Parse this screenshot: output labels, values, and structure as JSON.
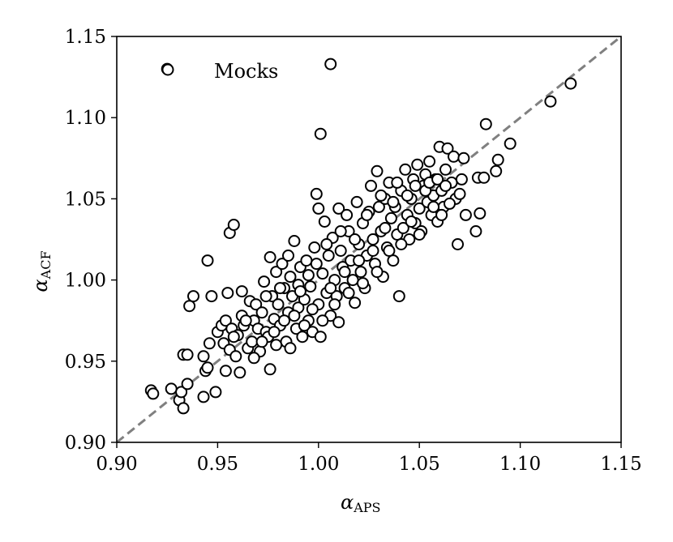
{
  "chart_data": {
    "type": "scatter",
    "xlabel": "α",
    "xlabel_sub": "APS",
    "ylabel": "α",
    "ylabel_sub": "ACF",
    "xlim": [
      0.9,
      1.15
    ],
    "ylim": [
      0.9,
      1.15
    ],
    "xticks": [
      "0.90",
      "0.95",
      "1.00",
      "1.05",
      "1.10",
      "1.15"
    ],
    "yticks": [
      "0.90",
      "0.95",
      "1.00",
      "1.05",
      "1.10",
      "1.15"
    ],
    "legend": {
      "label": "Mocks",
      "position": "top-left"
    },
    "reference_line": {
      "style": "dashed",
      "color": "#808080",
      "from": [
        0.9,
        0.9
      ],
      "to": [
        1.15,
        1.15
      ]
    },
    "marker": {
      "shape": "circle",
      "fill": "#ffffff",
      "edge": "#000000"
    },
    "series": [
      {
        "points": [
          [
            0.917,
            0.932
          ],
          [
            0.918,
            0.93
          ],
          [
            0.927,
            0.933
          ],
          [
            0.931,
            0.926
          ],
          [
            0.932,
            0.931
          ],
          [
            0.933,
            0.921
          ],
          [
            0.933,
            0.954
          ],
          [
            0.935,
            0.954
          ],
          [
            0.935,
            0.936
          ],
          [
            0.936,
            0.984
          ],
          [
            0.938,
            0.99
          ],
          [
            0.943,
            0.953
          ],
          [
            0.943,
            0.928
          ],
          [
            0.944,
            0.944
          ],
          [
            0.945,
            0.946
          ],
          [
            0.945,
            1.012
          ],
          [
            0.946,
            0.961
          ],
          [
            0.947,
            0.99
          ],
          [
            0.949,
            0.931
          ],
          [
            0.95,
            0.968
          ],
          [
            0.952,
            0.972
          ],
          [
            0.953,
            0.961
          ],
          [
            0.954,
            0.975
          ],
          [
            0.954,
            0.944
          ],
          [
            0.955,
            0.992
          ],
          [
            0.956,
            1.029
          ],
          [
            0.958,
            1.034
          ],
          [
            0.956,
            0.957
          ],
          [
            0.957,
            0.97
          ],
          [
            0.959,
            0.953
          ],
          [
            0.96,
            0.966
          ],
          [
            0.961,
            0.943
          ],
          [
            0.962,
            0.993
          ],
          [
            0.962,
            0.978
          ],
          [
            0.963,
            0.972
          ],
          [
            0.965,
            0.958
          ],
          [
            0.966,
            0.987
          ],
          [
            0.967,
            0.962
          ],
          [
            0.968,
            0.975
          ],
          [
            0.969,
            0.985
          ],
          [
            0.97,
            0.97
          ],
          [
            0.971,
            0.956
          ],
          [
            0.972,
            0.98
          ],
          [
            0.973,
            0.999
          ],
          [
            0.974,
            0.968
          ],
          [
            0.975,
            0.965
          ],
          [
            0.976,
            0.945
          ],
          [
            0.976,
            1.014
          ],
          [
            0.977,
            0.99
          ],
          [
            0.978,
            0.976
          ],
          [
            0.979,
            0.96
          ],
          [
            0.979,
            1.005
          ],
          [
            0.98,
            0.985
          ],
          [
            0.981,
            0.972
          ],
          [
            0.982,
            1.01
          ],
          [
            0.983,
            0.995
          ],
          [
            0.984,
            0.962
          ],
          [
            0.985,
            0.98
          ],
          [
            0.986,
            1.002
          ],
          [
            0.986,
            0.958
          ],
          [
            0.987,
            0.99
          ],
          [
            0.988,
            1.024
          ],
          [
            0.989,
            0.97
          ],
          [
            0.99,
            0.997
          ],
          [
            0.99,
            0.983
          ],
          [
            0.991,
            1.008
          ],
          [
            0.992,
            0.965
          ],
          [
            0.993,
            0.988
          ],
          [
            0.994,
            1.012
          ],
          [
            0.995,
            0.975
          ],
          [
            0.996,
            0.996
          ],
          [
            0.997,
            0.968
          ],
          [
            0.998,
            1.02
          ],
          [
            0.999,
            1.053
          ],
          [
            1.0,
            1.044
          ],
          [
            1.0,
            0.985
          ],
          [
            1.001,
            1.09
          ],
          [
            1.001,
            0.965
          ],
          [
            1.002,
            1.004
          ],
          [
            1.003,
            1.036
          ],
          [
            1.004,
            0.992
          ],
          [
            1.005,
            1.015
          ],
          [
            1.006,
            1.133
          ],
          [
            1.006,
            0.978
          ],
          [
            1.007,
            1.026
          ],
          [
            1.008,
            1.0
          ],
          [
            1.009,
            0.99
          ],
          [
            1.01,
            1.044
          ],
          [
            1.01,
            0.974
          ],
          [
            1.011,
            1.018
          ],
          [
            1.012,
            1.008
          ],
          [
            1.013,
            0.995
          ],
          [
            1.014,
            1.04
          ],
          [
            1.015,
            1.03
          ],
          [
            1.016,
            1.012
          ],
          [
            1.017,
            1.0
          ],
          [
            1.018,
            0.986
          ],
          [
            1.019,
            1.048
          ],
          [
            1.02,
            1.022
          ],
          [
            1.021,
            1.005
          ],
          [
            1.022,
            1.035
          ],
          [
            1.023,
            0.995
          ],
          [
            1.024,
            1.015
          ],
          [
            1.025,
            1.042
          ],
          [
            1.026,
            1.058
          ],
          [
            1.027,
            1.025
          ],
          [
            1.028,
            1.01
          ],
          [
            1.029,
            1.067
          ],
          [
            1.03,
            1.045
          ],
          [
            1.031,
            1.03
          ],
          [
            1.032,
            1.002
          ],
          [
            1.033,
            1.05
          ],
          [
            1.034,
            1.02
          ],
          [
            1.035,
            1.06
          ],
          [
            1.036,
            1.038
          ],
          [
            1.037,
            1.012
          ],
          [
            1.038,
            1.045
          ],
          [
            1.039,
            1.028
          ],
          [
            1.04,
            0.99
          ],
          [
            1.041,
            1.055
          ],
          [
            1.042,
            1.032
          ],
          [
            1.043,
            1.068
          ],
          [
            1.044,
            1.04
          ],
          [
            1.045,
            1.025
          ],
          [
            1.046,
            1.05
          ],
          [
            1.047,
            1.062
          ],
          [
            1.048,
            1.035
          ],
          [
            1.049,
            1.071
          ],
          [
            1.05,
            1.044
          ],
          [
            1.051,
            1.03
          ],
          [
            1.052,
            1.058
          ],
          [
            1.053,
            1.065
          ],
          [
            1.054,
            1.048
          ],
          [
            1.055,
            1.073
          ],
          [
            1.056,
            1.04
          ],
          [
            1.057,
            1.052
          ],
          [
            1.058,
            1.062
          ],
          [
            1.059,
            1.036
          ],
          [
            1.06,
            1.082
          ],
          [
            1.061,
            1.055
          ],
          [
            1.062,
            1.045
          ],
          [
            1.063,
            1.068
          ],
          [
            1.064,
            1.081
          ],
          [
            1.066,
            1.06
          ],
          [
            1.067,
            1.076
          ],
          [
            1.068,
            1.05
          ],
          [
            1.069,
            1.022
          ],
          [
            1.07,
            1.053
          ],
          [
            1.071,
            1.062
          ],
          [
            1.072,
            1.075
          ],
          [
            1.073,
            1.04
          ],
          [
            1.078,
            1.03
          ],
          [
            1.079,
            1.063
          ],
          [
            1.08,
            1.041
          ],
          [
            1.082,
            1.063
          ],
          [
            1.083,
            1.096
          ],
          [
            1.088,
            1.067
          ],
          [
            1.089,
            1.074
          ],
          [
            1.095,
            1.084
          ],
          [
            1.115,
            1.11
          ],
          [
            1.125,
            1.121
          ],
          [
            0.925,
            1.13
          ],
          [
            0.958,
            0.965
          ],
          [
            0.964,
            0.975
          ],
          [
            0.968,
            0.952
          ],
          [
            0.972,
            0.962
          ],
          [
            0.974,
            0.99
          ],
          [
            0.978,
            0.968
          ],
          [
            0.981,
            0.995
          ],
          [
            0.983,
            0.975
          ],
          [
            0.985,
            1.015
          ],
          [
            0.988,
            0.978
          ],
          [
            0.991,
            0.993
          ],
          [
            0.993,
            0.972
          ],
          [
            0.995,
            1.003
          ],
          [
            0.997,
            0.982
          ],
          [
            0.999,
            1.01
          ],
          [
            1.002,
            0.975
          ],
          [
            1.004,
            1.022
          ],
          [
            1.006,
            0.995
          ],
          [
            1.008,
            0.985
          ],
          [
            1.011,
            1.03
          ],
          [
            1.013,
            1.005
          ],
          [
            1.015,
            0.992
          ],
          [
            1.018,
            1.025
          ],
          [
            1.02,
            1.012
          ],
          [
            1.022,
            0.998
          ],
          [
            1.024,
            1.04
          ],
          [
            1.027,
            1.018
          ],
          [
            1.029,
            1.005
          ],
          [
            1.031,
            1.052
          ],
          [
            1.033,
            1.032
          ],
          [
            1.035,
            1.018
          ],
          [
            1.037,
            1.048
          ],
          [
            1.039,
            1.06
          ],
          [
            1.041,
            1.022
          ],
          [
            1.044,
            1.052
          ],
          [
            1.046,
            1.036
          ],
          [
            1.048,
            1.058
          ],
          [
            1.05,
            1.028
          ],
          [
            1.053,
            1.055
          ],
          [
            1.055,
            1.06
          ],
          [
            1.057,
            1.045
          ],
          [
            1.059,
            1.062
          ],
          [
            1.061,
            1.04
          ],
          [
            1.063,
            1.058
          ],
          [
            1.065,
            1.047
          ]
        ]
      }
    ]
  }
}
